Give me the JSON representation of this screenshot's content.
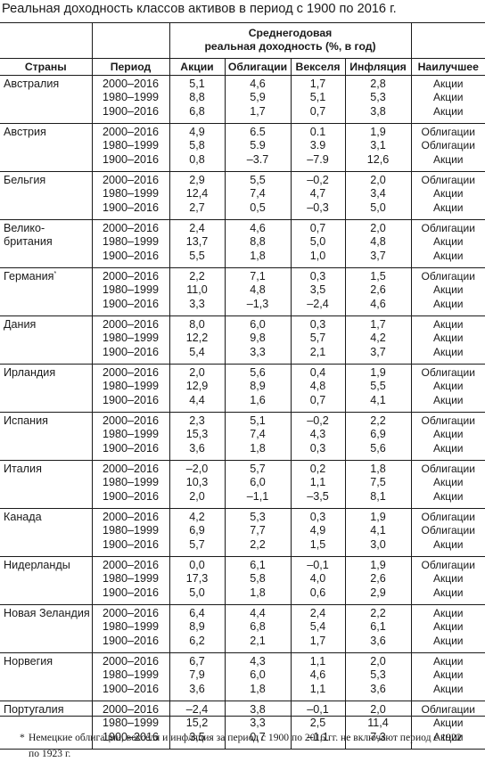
{
  "title": "Реальная доходность классов активов в период с 1900 по 2016 г.",
  "header": {
    "group_label_line1": "Среднегодовая",
    "group_label_line2": "реальная доходность (%, в год)",
    "columns": [
      "Страны",
      "Период",
      "Акции",
      "Облигации",
      "Векселя",
      "Инфляция",
      "Наилучшее"
    ]
  },
  "rows": [
    {
      "country_lines": [
        "Австралия"
      ],
      "mark": "",
      "periods": [
        "2000–2016",
        "1980–1999",
        "1900–2016"
      ],
      "stocks": [
        "5,1",
        "8,8",
        "6,8"
      ],
      "bonds": [
        "4,6",
        "5,9",
        "1,7"
      ],
      "bills": [
        "1,7",
        "5,1",
        "0,7"
      ],
      "inflation": [
        "2,8",
        "5,3",
        "3,8"
      ],
      "best": [
        "Акции",
        "Акции",
        "Акции"
      ]
    },
    {
      "country_lines": [
        "Австрия"
      ],
      "mark": "",
      "periods": [
        "2000–2016",
        "1980–1999",
        "1900–2016"
      ],
      "stocks": [
        "4,9",
        "5,8",
        "0,8"
      ],
      "bonds": [
        "6.5",
        "5.9",
        "–3.7"
      ],
      "bills": [
        "0.1",
        "3.9",
        "–7.9"
      ],
      "inflation": [
        "1,9",
        "3,1",
        "12,6"
      ],
      "best": [
        "Облигации",
        "Облигации",
        "Акции"
      ]
    },
    {
      "country_lines": [
        "Бельгия"
      ],
      "mark": "",
      "periods": [
        "2000–2016",
        "1980–1999",
        "1900–2016"
      ],
      "stocks": [
        "2,9",
        "12,4",
        "2,7"
      ],
      "bonds": [
        "5,5",
        "7,4",
        "0,5"
      ],
      "bills": [
        "–0,2",
        "4,7",
        "–0,3"
      ],
      "inflation": [
        "2,0",
        "3,4",
        "5,0"
      ],
      "best": [
        "Облигации",
        "Акции",
        "Акции"
      ]
    },
    {
      "country_lines": [
        "Велико-",
        "британия"
      ],
      "mark": "",
      "periods": [
        "2000–2016",
        "1980–1999",
        "1900–2016"
      ],
      "stocks": [
        "2,4",
        "13,7",
        "5,5"
      ],
      "bonds": [
        "4,6",
        "8,8",
        "1,8"
      ],
      "bills": [
        "0,7",
        "5,0",
        "1,0"
      ],
      "inflation": [
        "2,0",
        "4,8",
        "3,7"
      ],
      "best": [
        "Облигации",
        "Акции",
        "Акции"
      ]
    },
    {
      "country_lines": [
        "Германия"
      ],
      "mark": "*",
      "periods": [
        "2000–2016",
        "1980–1999",
        "1900–2016"
      ],
      "stocks": [
        "2,2",
        "11,0",
        "3,3"
      ],
      "bonds": [
        "7,1",
        "4,8",
        "–1,3"
      ],
      "bills": [
        "0,3",
        "3,5",
        "–2,4"
      ],
      "inflation": [
        "1,5",
        "2,6",
        "4,6"
      ],
      "best": [
        "Облигации",
        "Акции",
        "Акции"
      ]
    },
    {
      "country_lines": [
        "Дания"
      ],
      "mark": "",
      "periods": [
        "2000–2016",
        "1980–1999",
        "1900–2016"
      ],
      "stocks": [
        "8,0",
        "12,2",
        "5,4"
      ],
      "bonds": [
        "6,0",
        "9,8",
        "3,3"
      ],
      "bills": [
        "0,3",
        "5,7",
        "2,1"
      ],
      "inflation": [
        "1,7",
        "4,2",
        "3,7"
      ],
      "best": [
        "Акции",
        "Акции",
        "Акции"
      ]
    },
    {
      "country_lines": [
        "Ирландия"
      ],
      "mark": "",
      "periods": [
        "2000–2016",
        "1980–1999",
        "1900–2016"
      ],
      "stocks": [
        "2,0",
        "12,9",
        "4,4"
      ],
      "bonds": [
        "5,6",
        "8,9",
        "1,6"
      ],
      "bills": [
        "0,4",
        "4,8",
        "0,7"
      ],
      "inflation": [
        "1,9",
        "5,5",
        "4,1"
      ],
      "best": [
        "Облигации",
        "Акции",
        "Акции"
      ]
    },
    {
      "country_lines": [
        "Испания"
      ],
      "mark": "",
      "periods": [
        "2000–2016",
        "1980–1999",
        "1900–2016"
      ],
      "stocks": [
        "2,3",
        "15,3",
        "3,6"
      ],
      "bonds": [
        "5,1",
        "7,4",
        "1,8"
      ],
      "bills": [
        "–0,2",
        "4,3",
        "0,3"
      ],
      "inflation": [
        "2,2",
        "6,9",
        "5,6"
      ],
      "best": [
        "Облигации",
        "Акции",
        "Акции"
      ]
    },
    {
      "country_lines": [
        "Италия"
      ],
      "mark": "",
      "periods": [
        "2000–2016",
        "1980–1999",
        "1900–2016"
      ],
      "stocks": [
        "–2,0",
        "10,3",
        "2,0"
      ],
      "bonds": [
        "5,7",
        "6,0",
        "–1,1"
      ],
      "bills": [
        "0,2",
        "1,1",
        "–3,5"
      ],
      "inflation": [
        "1,8",
        "7,5",
        "8,1"
      ],
      "best": [
        "Облигации",
        "Акции",
        "Акции"
      ]
    },
    {
      "country_lines": [
        "Канада"
      ],
      "mark": "",
      "periods": [
        "2000–2016",
        "1980–1999",
        "1900–2016"
      ],
      "stocks": [
        "4,2",
        "6,9",
        "5,7"
      ],
      "bonds": [
        "5,3",
        "7,7",
        "2,2"
      ],
      "bills": [
        "0,3",
        "4,9",
        "1,5"
      ],
      "inflation": [
        "1,9",
        "4,1",
        "3,0"
      ],
      "best": [
        "Облигации",
        "Облигации",
        "Акции"
      ]
    },
    {
      "country_lines": [
        "Нидерланды"
      ],
      "mark": "",
      "periods": [
        "2000–2016",
        "1980–1999",
        "1900–2016"
      ],
      "stocks": [
        "0,0",
        "17,3",
        "5,0"
      ],
      "bonds": [
        "6,1",
        "5,8",
        "1,8"
      ],
      "bills": [
        "–0,1",
        "4,0",
        "0,6"
      ],
      "inflation": [
        "1,9",
        "2,6",
        "2,9"
      ],
      "best": [
        "Облигации",
        "Акции",
        "Акции"
      ]
    },
    {
      "country_lines": [
        "Новая Зеландия"
      ],
      "mark": "",
      "periods": [
        "2000–2016",
        "1980–1999",
        "1900–2016"
      ],
      "stocks": [
        "6,4",
        "8,9",
        "6,2"
      ],
      "bonds": [
        "4,4",
        "6,8",
        "2,1"
      ],
      "bills": [
        "2,4",
        "5,4",
        "1,7"
      ],
      "inflation": [
        "2,2",
        "6,1",
        "3,6"
      ],
      "best": [
        "Акции",
        "Акции",
        "Акции"
      ]
    },
    {
      "country_lines": [
        "Норвегия"
      ],
      "mark": "",
      "periods": [
        "2000–2016",
        "1980–1999",
        "1900–2016"
      ],
      "stocks": [
        "6,7",
        "7,9",
        "3,6"
      ],
      "bonds": [
        "4,3",
        "6,0",
        "1,8"
      ],
      "bills": [
        "1,1",
        "4,6",
        "1,1"
      ],
      "inflation": [
        "2,0",
        "5,3",
        "3,6"
      ],
      "best": [
        "Акции",
        "Акции",
        "Акции"
      ]
    },
    {
      "country_lines": [
        "Португалия"
      ],
      "mark": "",
      "periods": [
        "2000–2016",
        "1980–1999",
        "1900–2016"
      ],
      "stocks": [
        "–2,4",
        "15,2",
        "3,5"
      ],
      "bonds": [
        "3,8",
        "3,3",
        "0,7"
      ],
      "bills": [
        "–0,1",
        "2,5",
        "–1,1"
      ],
      "inflation": [
        "2,0",
        "11,4",
        "7,3"
      ],
      "best": [
        "Облигации",
        "Акции",
        "Акции"
      ]
    }
  ],
  "footnote": {
    "mark": "*",
    "text": "Немецкие облигации, векселя и инфляция за период с 1900 по 2016 гг. не включают период с 1922 по 1923 г."
  }
}
